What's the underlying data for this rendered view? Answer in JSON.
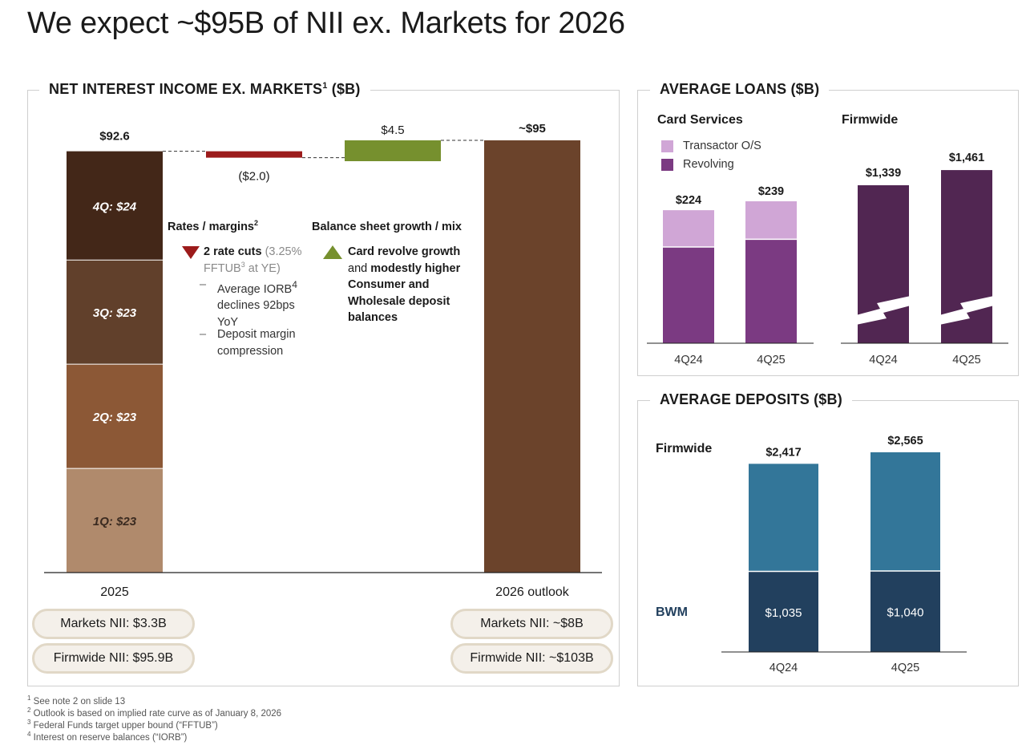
{
  "slide": {
    "title": "We expect ~$95B of NII ex. Markets for 2026"
  },
  "nii_panel": {
    "title": "NET INTEREST INCOME EX. MARKETS",
    "title_sup": "1",
    "title_suffix": " ($B)",
    "annotations": {
      "rates": {
        "heading": "Rates / margins",
        "heading_sup": "2",
        "icon": "triangle-down-icon",
        "bullet_bold": "2 rate cuts",
        "bullet_grey_1": " (3.25%",
        "bullet_grey_2": "FFTUB",
        "bullet_grey_sup": "3",
        "bullet_grey_3": " at YE)",
        "sub_items": [
          {
            "dash": "–",
            "text": "Average IORB",
            "sup": "4",
            "text2": " declines 92bps YoY"
          },
          {
            "dash": "–",
            "text": "Deposit margin compression"
          }
        ]
      },
      "balance": {
        "heading": "Balance sheet growth / mix",
        "icon": "triangle-up-icon",
        "line1_bold": "Card revolve growth",
        "line2_plain": "and ",
        "line2_bold": "modestly higher",
        "line3_bold": "Consumer and",
        "line4_bold": "Wholesale deposit",
        "line5_bold": "balances"
      }
    },
    "pills": {
      "left_markets": "Markets NII: $3.3B",
      "left_firmwide": "Firmwide NII: $95.9B",
      "right_markets": "Markets NII: ~$8B",
      "right_firmwide": "Firmwide NII: ~$103B"
    }
  },
  "loans_panel": {
    "title": "AVERAGE LOANS ($B)",
    "card_heading": "Card Services",
    "firmwide_heading": "Firmwide",
    "legend": [
      {
        "label": "Transactor O/S",
        "color": "#d0a6d6"
      },
      {
        "label": "Revolving",
        "color": "#7b3a82"
      }
    ]
  },
  "deposits_panel": {
    "title": "AVERAGE DEPOSITS ($B)",
    "row_label_firmwide": "Firmwide",
    "row_label_bwm": "BWM"
  },
  "footnotes": [
    {
      "num": "1",
      "text": " See note 2 on slide 13"
    },
    {
      "num": "2",
      "text": " Outlook is based on implied rate curve as of January 8, 2026"
    },
    {
      "num": "3",
      "text": " Federal Funds target upper bound (“FFTUB”)"
    },
    {
      "num": "4",
      "text": " Interest on reserve balances (“IORB”)"
    }
  ],
  "chart_data": [
    {
      "type": "bar",
      "subtype": "waterfall",
      "title": "NET INTEREST INCOME EX. MARKETS ($B)",
      "categories": [
        "2025",
        "Rates / margins",
        "Balance sheet growth / mix",
        "2026 outlook"
      ],
      "x_labels": [
        "2025",
        "",
        "",
        "2026 outlook"
      ],
      "stack_2025": [
        {
          "label": "1Q: $23",
          "value": 23,
          "color": "#b08a6c"
        },
        {
          "label": "2Q: $23",
          "value": 23,
          "color": "#8c5836"
        },
        {
          "label": "3Q: $23",
          "value": 23,
          "color": "#61402b"
        },
        {
          "label": "4Q: $24",
          "value": 24,
          "color": "#432718"
        }
      ],
      "total_2025": 92.6,
      "total_2025_label": "$92.6",
      "delta_rates": -2.0,
      "delta_rates_label": "($2.0)",
      "delta_rates_color": "#9c1b1b",
      "delta_balance": 4.5,
      "delta_balance_label": "$4.5",
      "delta_balance_color": "#76902e",
      "outlook_2026": 95,
      "outlook_2026_label": "~$95",
      "outlook_color": "#6b432b",
      "ylim": [
        0,
        95
      ]
    },
    {
      "type": "bar",
      "subtype": "stacked",
      "title": "Card Services Average Loans ($B)",
      "categories": [
        "4Q24",
        "4Q25"
      ],
      "totals": [
        224,
        239
      ],
      "total_labels": [
        "$224",
        "$239"
      ],
      "series": [
        {
          "name": "Revolving",
          "values": [
            162,
            175
          ],
          "color": "#7b3a82"
        },
        {
          "name": "Transactor O/S",
          "values": [
            62,
            64
          ],
          "color": "#d0a6d6"
        }
      ],
      "ylim": [
        0,
        245
      ]
    },
    {
      "type": "bar",
      "subtype": "broken-axis",
      "title": "Firmwide Average Loans ($B)",
      "categories": [
        "4Q24",
        "4Q25"
      ],
      "values": [
        1339,
        1461
      ],
      "labels": [
        "$1,339",
        "$1,461"
      ],
      "color": "#512652"
    },
    {
      "type": "bar",
      "subtype": "stacked",
      "title": "Average Deposits ($B)",
      "categories": [
        "4Q24",
        "4Q25"
      ],
      "totals": [
        2417,
        2565
      ],
      "total_labels": [
        "$2,417",
        "$2,565"
      ],
      "series": [
        {
          "name": "BWM",
          "values": [
            1035,
            1040
          ],
          "labels": [
            "$1,035",
            "$1,040"
          ],
          "color": "#22405e"
        },
        {
          "name": "Other Firmwide",
          "values": [
            1382,
            1525
          ],
          "color": "#337699"
        }
      ],
      "row_labels": [
        "Firmwide",
        "BWM"
      ],
      "ylim": [
        0,
        2600
      ]
    }
  ]
}
